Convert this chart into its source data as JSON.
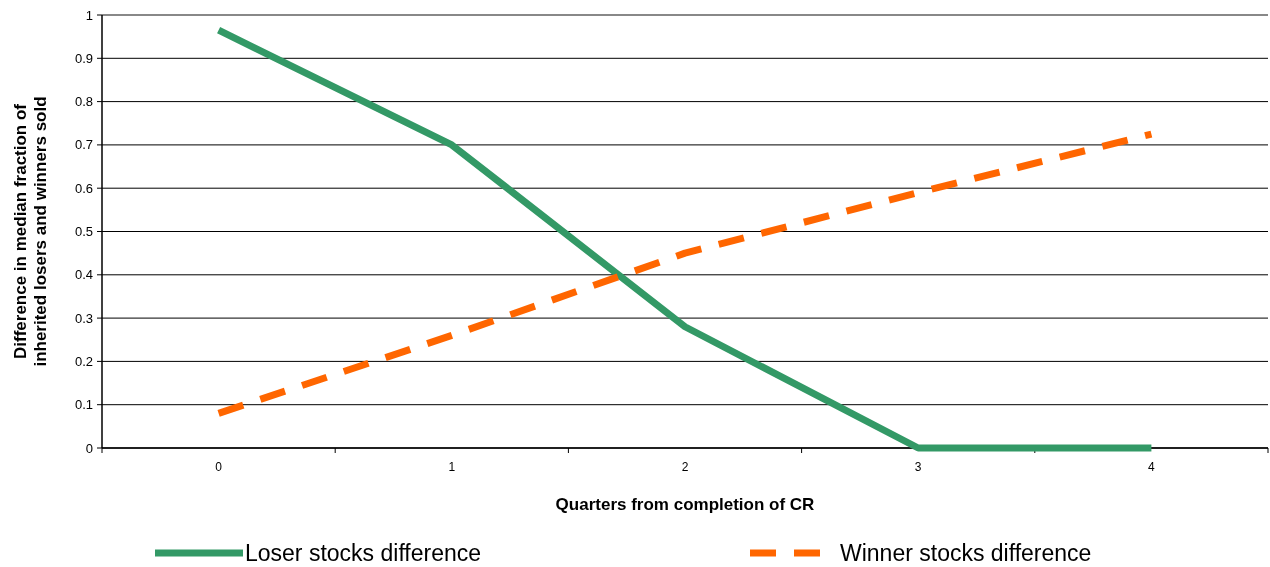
{
  "chart_data": {
    "type": "line",
    "xlabel": "Quarters from completion of CR",
    "ylabel": "Difference in median fraction of inherited losers and winners sold",
    "categories": [
      "0",
      "1",
      "2",
      "3",
      "4"
    ],
    "series": [
      {
        "name": "Loser stocks difference",
        "color": "#339966",
        "line_style": "solid",
        "values": [
          0.965,
          0.7,
          0.28,
          0,
          0
        ]
      },
      {
        "name": "Winner stocks difference",
        "color": "#ff6600",
        "line_style": "dashed",
        "values": [
          0.08,
          0.26,
          0.45,
          0.59,
          0.725
        ]
      }
    ],
    "ylim": [
      0,
      1
    ],
    "yticks": [
      0,
      0.1,
      0.2,
      0.3,
      0.4,
      0.5,
      0.6,
      0.7,
      0.8,
      0.9,
      1
    ],
    "grid": "y",
    "legend": "bottom",
    "marker": "none"
  }
}
